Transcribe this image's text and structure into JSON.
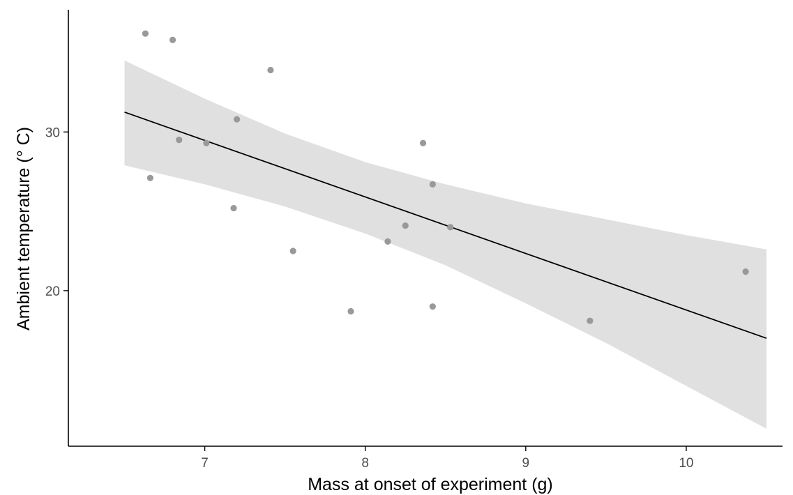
{
  "chart_data": {
    "type": "scatter",
    "xlabel": "Mass at onset of experiment (g)",
    "ylabel": "Ambient temperature (° C)",
    "xlim": [
      6.15,
      10.6
    ],
    "ylim": [
      10.2,
      37.7
    ],
    "xticks": [
      7,
      8,
      9,
      10
    ],
    "yticks": [
      20,
      30
    ],
    "grid": false,
    "legend": "none",
    "colors": {
      "points": "#999999",
      "line": "#000000",
      "ribbon": "#e0e0e0",
      "axis": "#000000",
      "tick_label": "#4d4d4d"
    },
    "points": [
      {
        "x": 6.63,
        "y": 36.2
      },
      {
        "x": 6.8,
        "y": 35.8
      },
      {
        "x": 7.41,
        "y": 33.9
      },
      {
        "x": 7.2,
        "y": 30.8
      },
      {
        "x": 6.84,
        "y": 29.5
      },
      {
        "x": 7.01,
        "y": 29.3
      },
      {
        "x": 6.66,
        "y": 27.1
      },
      {
        "x": 7.18,
        "y": 25.2
      },
      {
        "x": 7.55,
        "y": 22.5
      },
      {
        "x": 8.36,
        "y": 29.3
      },
      {
        "x": 8.42,
        "y": 26.7
      },
      {
        "x": 8.25,
        "y": 24.1
      },
      {
        "x": 8.53,
        "y": 24.0
      },
      {
        "x": 8.14,
        "y": 23.1
      },
      {
        "x": 7.91,
        "y": 18.7
      },
      {
        "x": 8.42,
        "y": 19.0
      },
      {
        "x": 9.4,
        "y": 18.1
      },
      {
        "x": 10.37,
        "y": 21.2
      }
    ],
    "fit_line": {
      "x": [
        6.5,
        10.5
      ],
      "y": [
        31.25,
        17.0
      ]
    },
    "confidence_band": {
      "x": [
        6.5,
        7.0,
        7.5,
        8.0,
        8.5,
        9.0,
        9.5,
        10.0,
        10.5
      ],
      "upper": [
        34.5,
        32.1,
        29.9,
        28.1,
        26.7,
        25.5,
        24.5,
        23.5,
        22.6
      ],
      "lower": [
        27.9,
        26.7,
        25.3,
        23.6,
        21.6,
        19.2,
        16.7,
        14.0,
        11.3
      ]
    }
  }
}
